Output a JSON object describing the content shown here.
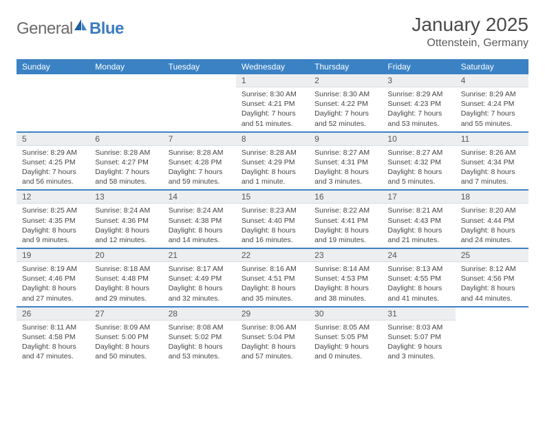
{
  "logo": {
    "text1": "General",
    "text2": "Blue"
  },
  "title": "January 2025",
  "location": "Ottenstein, Germany",
  "colors": {
    "header_bg": "#3b82c4",
    "header_text": "#ffffff",
    "daynum_bg": "#eceef0",
    "border": "#3b82c4",
    "logo_gray": "#6a6a6a",
    "logo_blue": "#3b7bbf"
  },
  "weekdays": [
    "Sunday",
    "Monday",
    "Tuesday",
    "Wednesday",
    "Thursday",
    "Friday",
    "Saturday"
  ],
  "weeks": [
    [
      {
        "empty": true
      },
      {
        "empty": true
      },
      {
        "empty": true
      },
      {
        "d": "1",
        "sr": "Sunrise: 8:30 AM",
        "ss": "Sunset: 4:21 PM",
        "dl": "Daylight: 7 hours and 51 minutes."
      },
      {
        "d": "2",
        "sr": "Sunrise: 8:30 AM",
        "ss": "Sunset: 4:22 PM",
        "dl": "Daylight: 7 hours and 52 minutes."
      },
      {
        "d": "3",
        "sr": "Sunrise: 8:29 AM",
        "ss": "Sunset: 4:23 PM",
        "dl": "Daylight: 7 hours and 53 minutes."
      },
      {
        "d": "4",
        "sr": "Sunrise: 8:29 AM",
        "ss": "Sunset: 4:24 PM",
        "dl": "Daylight: 7 hours and 55 minutes."
      }
    ],
    [
      {
        "d": "5",
        "sr": "Sunrise: 8:29 AM",
        "ss": "Sunset: 4:25 PM",
        "dl": "Daylight: 7 hours and 56 minutes."
      },
      {
        "d": "6",
        "sr": "Sunrise: 8:28 AM",
        "ss": "Sunset: 4:27 PM",
        "dl": "Daylight: 7 hours and 58 minutes."
      },
      {
        "d": "7",
        "sr": "Sunrise: 8:28 AM",
        "ss": "Sunset: 4:28 PM",
        "dl": "Daylight: 7 hours and 59 minutes."
      },
      {
        "d": "8",
        "sr": "Sunrise: 8:28 AM",
        "ss": "Sunset: 4:29 PM",
        "dl": "Daylight: 8 hours and 1 minute."
      },
      {
        "d": "9",
        "sr": "Sunrise: 8:27 AM",
        "ss": "Sunset: 4:31 PM",
        "dl": "Daylight: 8 hours and 3 minutes."
      },
      {
        "d": "10",
        "sr": "Sunrise: 8:27 AM",
        "ss": "Sunset: 4:32 PM",
        "dl": "Daylight: 8 hours and 5 minutes."
      },
      {
        "d": "11",
        "sr": "Sunrise: 8:26 AM",
        "ss": "Sunset: 4:34 PM",
        "dl": "Daylight: 8 hours and 7 minutes."
      }
    ],
    [
      {
        "d": "12",
        "sr": "Sunrise: 8:25 AM",
        "ss": "Sunset: 4:35 PM",
        "dl": "Daylight: 8 hours and 9 minutes."
      },
      {
        "d": "13",
        "sr": "Sunrise: 8:24 AM",
        "ss": "Sunset: 4:36 PM",
        "dl": "Daylight: 8 hours and 12 minutes."
      },
      {
        "d": "14",
        "sr": "Sunrise: 8:24 AM",
        "ss": "Sunset: 4:38 PM",
        "dl": "Daylight: 8 hours and 14 minutes."
      },
      {
        "d": "15",
        "sr": "Sunrise: 8:23 AM",
        "ss": "Sunset: 4:40 PM",
        "dl": "Daylight: 8 hours and 16 minutes."
      },
      {
        "d": "16",
        "sr": "Sunrise: 8:22 AM",
        "ss": "Sunset: 4:41 PM",
        "dl": "Daylight: 8 hours and 19 minutes."
      },
      {
        "d": "17",
        "sr": "Sunrise: 8:21 AM",
        "ss": "Sunset: 4:43 PM",
        "dl": "Daylight: 8 hours and 21 minutes."
      },
      {
        "d": "18",
        "sr": "Sunrise: 8:20 AM",
        "ss": "Sunset: 4:44 PM",
        "dl": "Daylight: 8 hours and 24 minutes."
      }
    ],
    [
      {
        "d": "19",
        "sr": "Sunrise: 8:19 AM",
        "ss": "Sunset: 4:46 PM",
        "dl": "Daylight: 8 hours and 27 minutes."
      },
      {
        "d": "20",
        "sr": "Sunrise: 8:18 AM",
        "ss": "Sunset: 4:48 PM",
        "dl": "Daylight: 8 hours and 29 minutes."
      },
      {
        "d": "21",
        "sr": "Sunrise: 8:17 AM",
        "ss": "Sunset: 4:49 PM",
        "dl": "Daylight: 8 hours and 32 minutes."
      },
      {
        "d": "22",
        "sr": "Sunrise: 8:16 AM",
        "ss": "Sunset: 4:51 PM",
        "dl": "Daylight: 8 hours and 35 minutes."
      },
      {
        "d": "23",
        "sr": "Sunrise: 8:14 AM",
        "ss": "Sunset: 4:53 PM",
        "dl": "Daylight: 8 hours and 38 minutes."
      },
      {
        "d": "24",
        "sr": "Sunrise: 8:13 AM",
        "ss": "Sunset: 4:55 PM",
        "dl": "Daylight: 8 hours and 41 minutes."
      },
      {
        "d": "25",
        "sr": "Sunrise: 8:12 AM",
        "ss": "Sunset: 4:56 PM",
        "dl": "Daylight: 8 hours and 44 minutes."
      }
    ],
    [
      {
        "d": "26",
        "sr": "Sunrise: 8:11 AM",
        "ss": "Sunset: 4:58 PM",
        "dl": "Daylight: 8 hours and 47 minutes."
      },
      {
        "d": "27",
        "sr": "Sunrise: 8:09 AM",
        "ss": "Sunset: 5:00 PM",
        "dl": "Daylight: 8 hours and 50 minutes."
      },
      {
        "d": "28",
        "sr": "Sunrise: 8:08 AM",
        "ss": "Sunset: 5:02 PM",
        "dl": "Daylight: 8 hours and 53 minutes."
      },
      {
        "d": "29",
        "sr": "Sunrise: 8:06 AM",
        "ss": "Sunset: 5:04 PM",
        "dl": "Daylight: 8 hours and 57 minutes."
      },
      {
        "d": "30",
        "sr": "Sunrise: 8:05 AM",
        "ss": "Sunset: 5:05 PM",
        "dl": "Daylight: 9 hours and 0 minutes."
      },
      {
        "d": "31",
        "sr": "Sunrise: 8:03 AM",
        "ss": "Sunset: 5:07 PM",
        "dl": "Daylight: 9 hours and 3 minutes."
      },
      {
        "empty": true
      }
    ]
  ]
}
